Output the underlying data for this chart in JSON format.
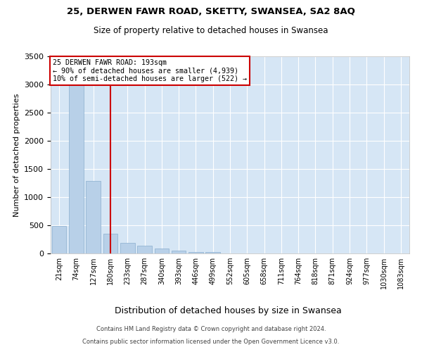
{
  "title_line1": "25, DERWEN FAWR ROAD, SKETTY, SWANSEA, SA2 8AQ",
  "title_line2": "Size of property relative to detached houses in Swansea",
  "xlabel": "Distribution of detached houses by size in Swansea",
  "ylabel": "Number of detached properties",
  "footer_line1": "Contains HM Land Registry data © Crown copyright and database right 2024.",
  "footer_line2": "Contains public sector information licensed under the Open Government Licence v3.0.",
  "annotation_line1": "25 DERWEN FAWR ROAD: 193sqm",
  "annotation_line2": "← 90% of detached houses are smaller (4,939)",
  "annotation_line3": "10% of semi-detached houses are larger (522) →",
  "bar_color": "#b8d0e8",
  "bar_edge_color": "#8aaece",
  "vline_color": "#cc0000",
  "annotation_box_edgecolor": "#cc0000",
  "background_color": "#d6e6f5",
  "grid_color": "#ffffff",
  "categories": [
    "21sqm",
    "74sqm",
    "127sqm",
    "180sqm",
    "233sqm",
    "287sqm",
    "340sqm",
    "393sqm",
    "446sqm",
    "499sqm",
    "552sqm",
    "605sqm",
    "658sqm",
    "711sqm",
    "764sqm",
    "818sqm",
    "871sqm",
    "924sqm",
    "977sqm",
    "1030sqm",
    "1083sqm"
  ],
  "values": [
    490,
    3000,
    1290,
    350,
    185,
    140,
    85,
    55,
    30,
    20,
    4,
    2,
    1,
    1,
    0,
    0,
    0,
    0,
    0,
    0,
    0
  ],
  "ylim": [
    0,
    3500
  ],
  "yticks": [
    0,
    500,
    1000,
    1500,
    2000,
    2500,
    3000,
    3500
  ],
  "vline_x_index": 3.0,
  "figsize": [
    6.0,
    5.0
  ],
  "dpi": 100
}
